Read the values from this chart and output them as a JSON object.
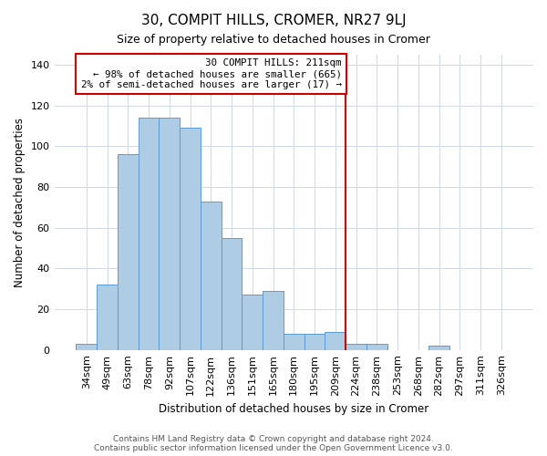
{
  "title": "30, COMPIT HILLS, CROMER, NR27 9LJ",
  "subtitle": "Size of property relative to detached houses in Cromer",
  "xlabel": "Distribution of detached houses by size in Cromer",
  "ylabel": "Number of detached properties",
  "bar_labels": [
    "34sqm",
    "49sqm",
    "63sqm",
    "78sqm",
    "92sqm",
    "107sqm",
    "122sqm",
    "136sqm",
    "151sqm",
    "165sqm",
    "180sqm",
    "195sqm",
    "209sqm",
    "224sqm",
    "238sqm",
    "253sqm",
    "268sqm",
    "282sqm",
    "297sqm",
    "311sqm",
    "326sqm"
  ],
  "bar_values": [
    3,
    32,
    96,
    114,
    114,
    109,
    73,
    55,
    27,
    29,
    8,
    8,
    9,
    3,
    3,
    0,
    0,
    2,
    0,
    0,
    0
  ],
  "bar_color": "#aecce4",
  "bar_edge_color": "#5b9bd5",
  "property_line_color": "#cc0000",
  "annotation_line1": "30 COMPIT HILLS: 211sqm",
  "annotation_line2": "← 98% of detached houses are smaller (665)",
  "annotation_line3": "2% of semi-detached houses are larger (17) →",
  "annotation_box_color": "#ffffff",
  "annotation_box_edge_color": "#cc0000",
  "ylim": [
    0,
    145
  ],
  "yticks": [
    0,
    20,
    40,
    60,
    80,
    100,
    120,
    140
  ],
  "footer_line1": "Contains HM Land Registry data © Crown copyright and database right 2024.",
  "footer_line2": "Contains public sector information licensed under the Open Government Licence v3.0.",
  "background_color": "#ffffff",
  "grid_color": "#d0d8e4"
}
